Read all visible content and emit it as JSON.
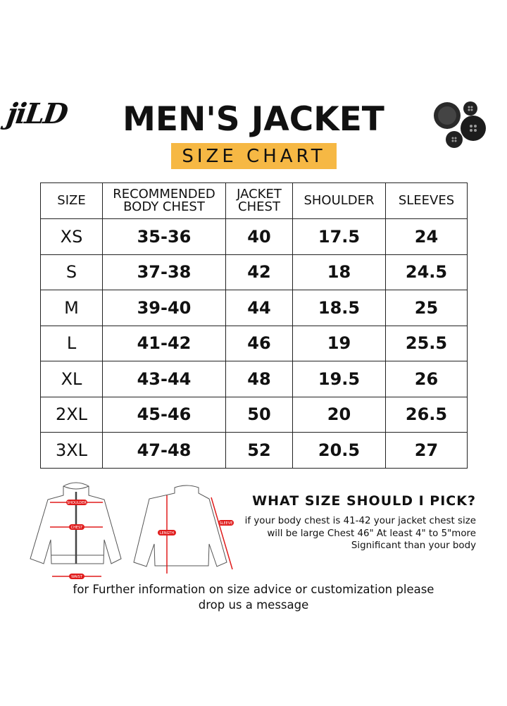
{
  "header": {
    "logo_text": "jiLD",
    "title": "MEN'S JACKET",
    "subtitle": "SIZE CHART",
    "accent_color": "#f6b844",
    "decor_icon": "buttons-icon"
  },
  "table": {
    "headers": [
      "SIZE",
      "RECOMMENDED BODY CHEST",
      "JACKET CHEST",
      "SHOULDER",
      "SLEEVES"
    ],
    "rows": [
      [
        "XS",
        "35-36",
        "40",
        "17.5",
        "24"
      ],
      [
        "S",
        "37-38",
        "42",
        "18",
        "24.5"
      ],
      [
        "M",
        "39-40",
        "44",
        "18.5",
        "25"
      ],
      [
        "L",
        "41-42",
        "46",
        "19",
        "25.5"
      ],
      [
        "XL",
        "43-44",
        "48",
        "19.5",
        "26"
      ],
      [
        "2XL",
        "45-46",
        "50",
        "20",
        "26.5"
      ],
      [
        "3XL",
        "47-48",
        "52",
        "20.5",
        "27"
      ]
    ]
  },
  "diagram": {
    "labels": {
      "shoulder": "SHOULDER",
      "chest": "CHEST",
      "waist": "WAIST",
      "length": "LENGTH",
      "sleeve": "SLEEVE"
    },
    "marker_color": "#e01b1b"
  },
  "advice": {
    "heading": "WHAT SIZE SHOULD I PICK?",
    "lines": [
      "if your body chest is 41-42 your jacket chest size",
      "will be large Chest 46\" At least 4\" to 5\"more",
      "Significant than your body"
    ]
  },
  "footer": {
    "lines": [
      "for Further information on size advice or customization please",
      "drop us a message"
    ]
  }
}
